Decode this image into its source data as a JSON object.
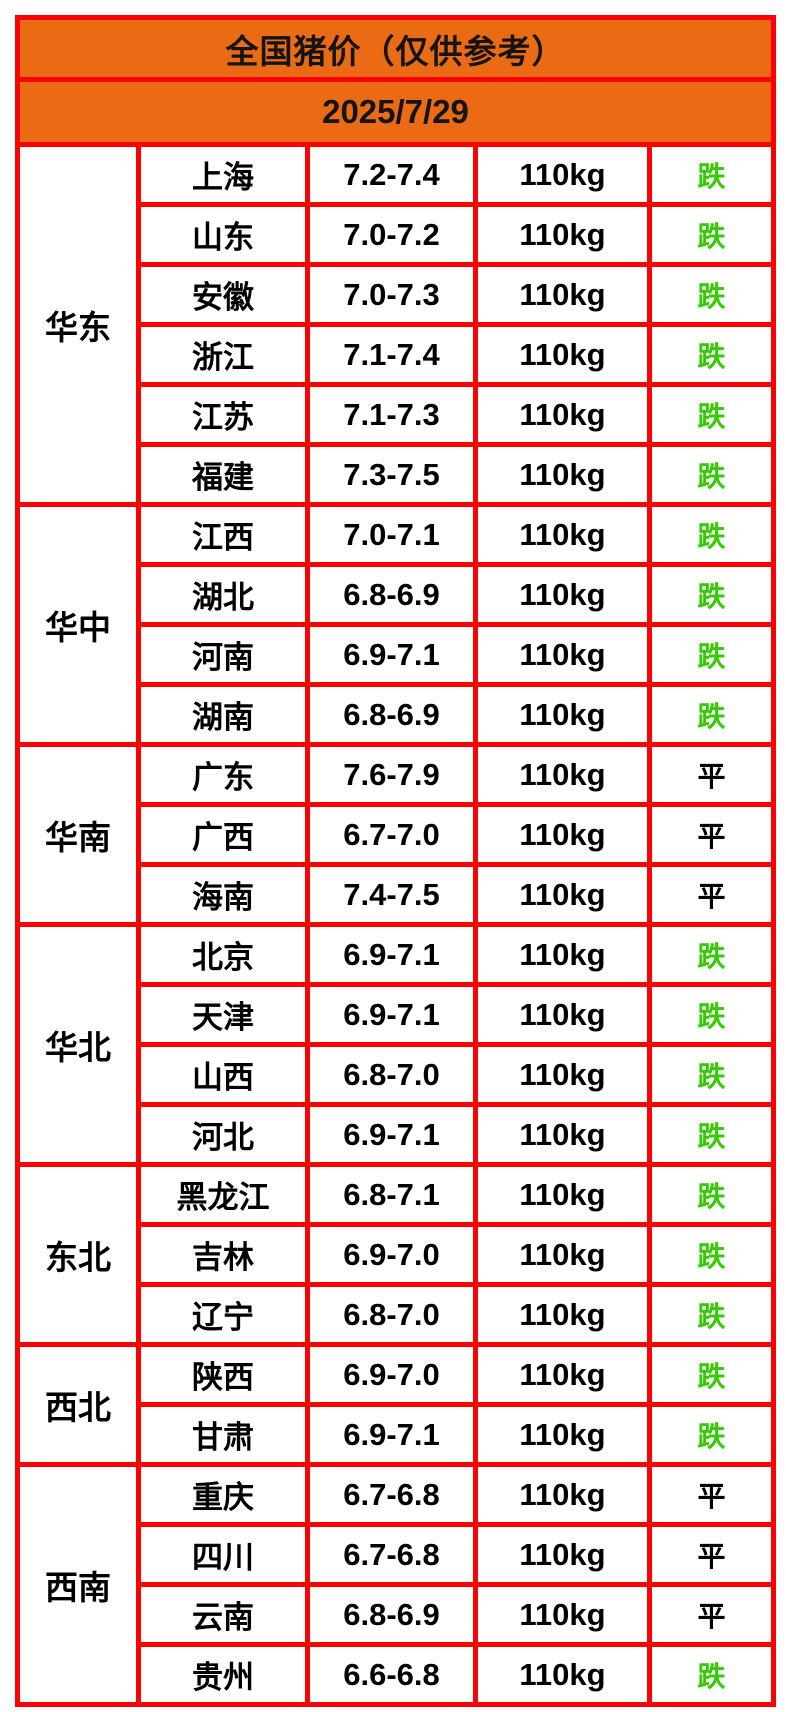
{
  "header": {
    "title": "全国猪价（仅供参考）",
    "date": "2025/7/29"
  },
  "colors": {
    "header_bg": "#eb6a14",
    "border_red": "#fe0000",
    "status_down_green": "#32cc00",
    "status_flat_black": "#000000",
    "text_black": "#141414",
    "cell_bg": "#ffffff"
  },
  "status_legend": {
    "down": "跌",
    "flat": "平"
  },
  "chart_data": {
    "type": "table",
    "title": "全国猪价（仅供参考）",
    "date": "2025/7/29",
    "columns": [
      "region",
      "province",
      "price_range",
      "weight",
      "status"
    ],
    "unit_note": "110kg",
    "regions": [
      {
        "name": "华东",
        "rows": [
          {
            "province": "上海",
            "price": "7.2-7.4",
            "weight": "110kg",
            "status": "跌"
          },
          {
            "province": "山东",
            "price": "7.0-7.2",
            "weight": "110kg",
            "status": "跌"
          },
          {
            "province": "安徽",
            "price": "7.0-7.3",
            "weight": "110kg",
            "status": "跌"
          },
          {
            "province": "浙江",
            "price": "7.1-7.4",
            "weight": "110kg",
            "status": "跌"
          },
          {
            "province": "江苏",
            "price": "7.1-7.3",
            "weight": "110kg",
            "status": "跌"
          },
          {
            "province": "福建",
            "price": "7.3-7.5",
            "weight": "110kg",
            "status": "跌"
          }
        ]
      },
      {
        "name": "华中",
        "rows": [
          {
            "province": "江西",
            "price": "7.0-7.1",
            "weight": "110kg",
            "status": "跌"
          },
          {
            "province": "湖北",
            "price": "6.8-6.9",
            "weight": "110kg",
            "status": "跌"
          },
          {
            "province": "河南",
            "price": "6.9-7.1",
            "weight": "110kg",
            "status": "跌"
          },
          {
            "province": "湖南",
            "price": "6.8-6.9",
            "weight": "110kg",
            "status": "跌"
          }
        ]
      },
      {
        "name": "华南",
        "rows": [
          {
            "province": "广东",
            "price": "7.6-7.9",
            "weight": "110kg",
            "status": "平"
          },
          {
            "province": "广西",
            "price": "6.7-7.0",
            "weight": "110kg",
            "status": "平"
          },
          {
            "province": "海南",
            "price": "7.4-7.5",
            "weight": "110kg",
            "status": "平"
          }
        ]
      },
      {
        "name": "华北",
        "rows": [
          {
            "province": "北京",
            "price": "6.9-7.1",
            "weight": "110kg",
            "status": "跌"
          },
          {
            "province": "天津",
            "price": "6.9-7.1",
            "weight": "110kg",
            "status": "跌"
          },
          {
            "province": "山西",
            "price": "6.8-7.0",
            "weight": "110kg",
            "status": "跌"
          },
          {
            "province": "河北",
            "price": "6.9-7.1",
            "weight": "110kg",
            "status": "跌"
          }
        ]
      },
      {
        "name": "东北",
        "rows": [
          {
            "province": "黑龙江",
            "price": "6.8-7.1",
            "weight": "110kg",
            "status": "跌"
          },
          {
            "province": "吉林",
            "price": "6.9-7.0",
            "weight": "110kg",
            "status": "跌"
          },
          {
            "province": "辽宁",
            "price": "6.8-7.0",
            "weight": "110kg",
            "status": "跌"
          }
        ]
      },
      {
        "name": "西北",
        "rows": [
          {
            "province": "陕西",
            "price": "6.9-7.0",
            "weight": "110kg",
            "status": "跌"
          },
          {
            "province": "甘肃",
            "price": "6.9-7.1",
            "weight": "110kg",
            "status": "跌"
          }
        ]
      },
      {
        "name": "西南",
        "rows": [
          {
            "province": "重庆",
            "price": "6.7-6.8",
            "weight": "110kg",
            "status": "平"
          },
          {
            "province": "四川",
            "price": "6.7-6.8",
            "weight": "110kg",
            "status": "平"
          },
          {
            "province": "云南",
            "price": "6.8-6.9",
            "weight": "110kg",
            "status": "平"
          },
          {
            "province": "贵州",
            "price": "6.6-6.8",
            "weight": "110kg",
            "status": "跌"
          }
        ]
      }
    ]
  }
}
